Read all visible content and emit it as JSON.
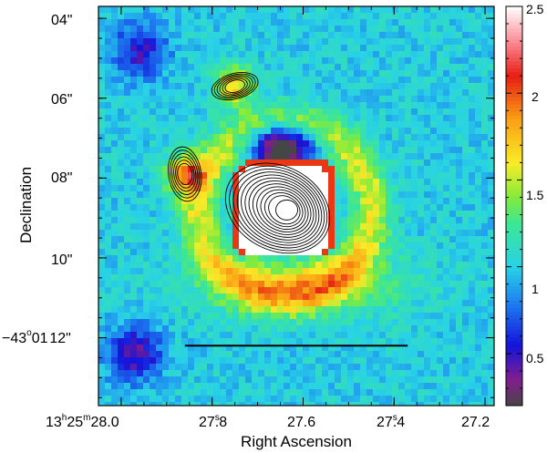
{
  "chart_data": {
    "type": "heatmap",
    "xlabel": "Right Ascension",
    "ylabel": "Declination",
    "x_ticks": [
      {
        "value": 28.0,
        "label_main": "13",
        "label_parts": [
          [
            "13",
            "h"
          ],
          [
            "25",
            "m"
          ],
          [
            "28.0",
            ""
          ]
        ]
      },
      {
        "value": 27.8,
        "label": "27s.8"
      },
      {
        "value": 27.6,
        "label": "27.6"
      },
      {
        "value": 27.4,
        "label": "27s.4"
      },
      {
        "value": 27.2,
        "label": "27.2"
      }
    ],
    "x_tick_labels": {
      "t0_a": "13",
      "t0_a_sup": "h",
      "t0_b": "25",
      "t0_b_sup": "m",
      "t0_c": "28.0",
      "t1": "27",
      "t1_sup": "s",
      "t1_dec": ".8",
      "t2": "27.6",
      "t3": "27",
      "t3_sup": "s",
      "t3_dec": ".4",
      "t4": "27.2"
    },
    "y_ticks": [
      {
        "value": 4,
        "label": "04\""
      },
      {
        "value": 6,
        "label": "06\""
      },
      {
        "value": 8,
        "label": "08\""
      },
      {
        "value": 10,
        "label": "10\""
      },
      {
        "value": 12,
        "label": "−43°01′12\""
      }
    ],
    "y_tick_labels": {
      "t04": "04\"",
      "t06": "06\"",
      "t08": "08\"",
      "t10": "10\"",
      "t12_a": "−43",
      "t12_deg": "o",
      "t12_b": "01",
      "t12_c": "12\""
    },
    "colorbar": {
      "range": [
        0.2,
        2.5
      ],
      "ticks": [
        {
          "value": 0.5,
          "label": "0.5"
        },
        {
          "value": 1.0,
          "label": "1"
        },
        {
          "value": 1.5,
          "label": "1.5"
        },
        {
          "value": 2.0,
          "label": "2"
        },
        {
          "value": 2.5,
          "label": "2.5"
        }
      ]
    },
    "xlim": [
      28.05,
      27.18
    ],
    "ylim": [
      3.7,
      13.7
    ],
    "scale_bar": {
      "from_x": 27.86,
      "to_x": 27.37,
      "at_y": 12.2
    },
    "features": {
      "nucleus": {
        "x": 27.64,
        "y": 8.8,
        "value": 2.5
      },
      "ring": {
        "center_x": 27.64,
        "center_y": 8.9,
        "value": 1.5
      },
      "shell_knots": [
        {
          "x": 27.86,
          "y": 7.9,
          "value": 2.0
        },
        {
          "x": 27.75,
          "y": 5.7,
          "value": 1.9
        }
      ],
      "low_regions": [
        {
          "x": 27.65,
          "y": 7.3,
          "value": 0.4
        },
        {
          "x": 27.96,
          "y": 4.8,
          "value": 0.6
        },
        {
          "x": 27.97,
          "y": 12.4,
          "value": 0.5
        }
      ]
    },
    "contours": {
      "levels": 12,
      "components": [
        "nucleus",
        "knot_west",
        "knot_north"
      ]
    },
    "grid": true
  }
}
